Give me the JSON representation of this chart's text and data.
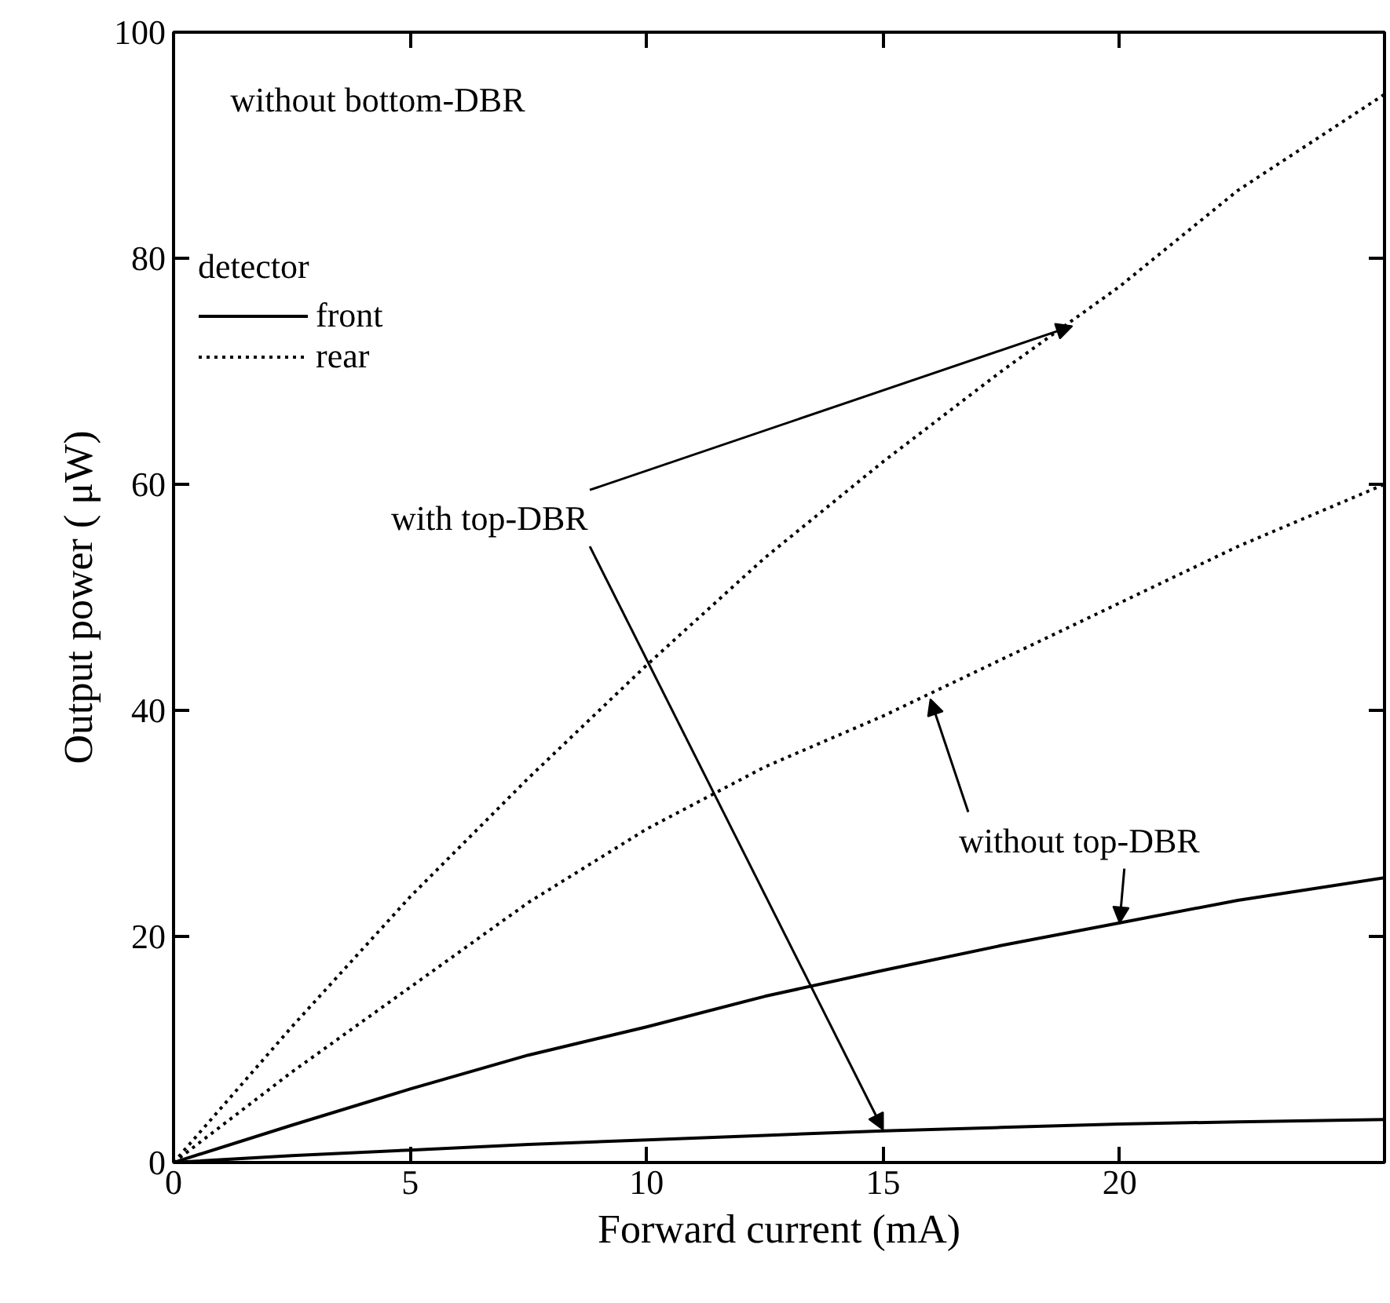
{
  "chart_data": {
    "type": "line",
    "xlabel": "Forward current (mA)",
    "ylabel": "Output power ( μW)",
    "legend_title": "detector",
    "x": [
      0,
      2.5,
      5,
      7.5,
      10,
      12.5,
      15,
      17.5,
      20,
      22.5,
      25.6
    ],
    "series": [
      {
        "name": "rear",
        "color": "#000000",
        "line_style": "dotted",
        "values": [
          0,
          12,
          23.5,
          34,
          44,
          53.5,
          62,
          70,
          77.5,
          86,
          94.5
        ]
      },
      {
        "color": "#000000",
        "line_style": "dotted",
        "values": [
          0,
          8,
          15.5,
          23,
          29.5,
          35,
          39.5,
          44.5,
          49.5,
          54.5,
          60
        ]
      },
      {
        "name": "front",
        "color": "#000000",
        "line_style": "solid",
        "values": [
          0,
          3.3,
          6.5,
          9.5,
          12,
          14.7,
          17,
          19.2,
          21.2,
          23.2,
          25.2
        ]
      },
      {
        "color": "#000000",
        "line_style": "solid",
        "values": [
          0,
          0.6,
          1.1,
          1.6,
          2.0,
          2.4,
          2.8,
          3.1,
          3.4,
          3.6,
          3.8
        ]
      }
    ],
    "annotations": [
      "without bottom-DBR",
      {
        "text": "with top-DBR",
        "x": 19,
        "y": 74
      },
      {
        "text": "without top-DBR",
        "x": 16,
        "y": 41
      }
    ],
    "xlim": [
      0,
      25.6
    ],
    "ylim": [
      0,
      100
    ],
    "xticks": [
      0,
      5,
      10,
      15,
      20
    ],
    "yticks": [
      0,
      20,
      40,
      60,
      80,
      100
    ],
    "grid": false,
    "legend": "top left"
  }
}
